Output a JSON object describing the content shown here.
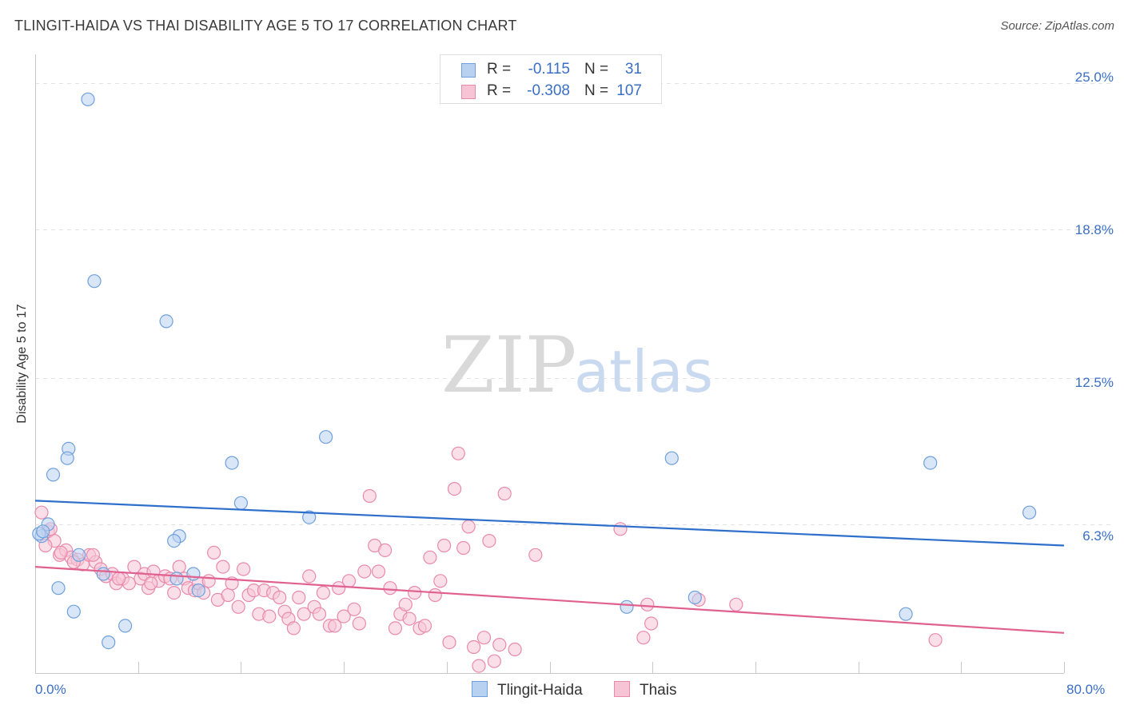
{
  "title": "TLINGIT-HAIDA VS THAI DISABILITY AGE 5 TO 17 CORRELATION CHART",
  "source": "Source: ZipAtlas.com",
  "watermark": {
    "zip": "ZIP",
    "atlas": "atlas"
  },
  "legend": {
    "r_label": "R =",
    "n_label": "N =",
    "rows": [
      {
        "r": "-0.115",
        "n": "31"
      },
      {
        "r": "-0.308",
        "n": "107"
      }
    ]
  },
  "chart_data": {
    "type": "scatter",
    "title": "TLINGIT-HAIDA VS THAI DISABILITY AGE 5 TO 17 CORRELATION CHART",
    "xlabel": "",
    "ylabel": "Disability Age 5 to 17",
    "xlim": [
      0,
      80
    ],
    "ylim": [
      0,
      25.8
    ],
    "x_tick_labels": [
      "0.0%",
      "80.0%"
    ],
    "y_ticks": [
      6.3,
      12.5,
      18.8,
      25.0
    ],
    "y_tick_labels": [
      "6.3%",
      "12.5%",
      "18.8%",
      "25.0%"
    ],
    "series": [
      {
        "name": "Tlingit-Haida",
        "color": "#6fa0dc",
        "fill": "#b9d1f0",
        "line_color": "#2f6fcc",
        "trend": [
          [
            0,
            7.3
          ],
          [
            80,
            5.4
          ]
        ],
        "points": [
          [
            0.5,
            5.8
          ],
          [
            1.0,
            6.3
          ],
          [
            4.1,
            24.3
          ],
          [
            4.6,
            16.6
          ],
          [
            10.2,
            14.9
          ],
          [
            2.6,
            9.5
          ],
          [
            2.5,
            9.1
          ],
          [
            1.4,
            8.4
          ],
          [
            22.6,
            10.0
          ],
          [
            15.3,
            8.9
          ],
          [
            16.0,
            7.2
          ],
          [
            21.3,
            6.6
          ],
          [
            11.2,
            5.8
          ],
          [
            10.8,
            5.6
          ],
          [
            3.4,
            5.0
          ],
          [
            5.3,
            4.2
          ],
          [
            12.3,
            4.2
          ],
          [
            1.8,
            3.6
          ],
          [
            11.0,
            4.0
          ],
          [
            12.7,
            3.5
          ],
          [
            3.0,
            2.6
          ],
          [
            7.0,
            2.0
          ],
          [
            5.7,
            1.3
          ],
          [
            49.5,
            9.1
          ],
          [
            69.6,
            8.9
          ],
          [
            77.3,
            6.8
          ],
          [
            46.0,
            2.8
          ],
          [
            51.3,
            3.2
          ],
          [
            67.7,
            2.5
          ],
          [
            0.3,
            5.9
          ],
          [
            0.6,
            6.0
          ]
        ]
      },
      {
        "name": "Thais",
        "color": "#e88aab",
        "fill": "#f7c4d5",
        "line_color": "#e0608e",
        "trend": [
          [
            0,
            4.5
          ],
          [
            80,
            1.7
          ]
        ],
        "points": [
          [
            0.5,
            6.8
          ],
          [
            1.0,
            6.0
          ],
          [
            1.5,
            5.6
          ],
          [
            1.9,
            5.0
          ],
          [
            2.4,
            5.2
          ],
          [
            2.8,
            4.9
          ],
          [
            3.3,
            4.8
          ],
          [
            3.7,
            4.6
          ],
          [
            4.2,
            5.0
          ],
          [
            4.7,
            4.7
          ],
          [
            5.1,
            4.4
          ],
          [
            5.5,
            4.1
          ],
          [
            6.0,
            4.2
          ],
          [
            6.3,
            3.8
          ],
          [
            6.8,
            4.0
          ],
          [
            7.3,
            3.8
          ],
          [
            7.7,
            4.5
          ],
          [
            8.2,
            4.0
          ],
          [
            8.5,
            4.2
          ],
          [
            8.8,
            3.6
          ],
          [
            9.2,
            4.3
          ],
          [
            9.6,
            3.9
          ],
          [
            10.1,
            4.1
          ],
          [
            10.5,
            4.0
          ],
          [
            10.8,
            3.4
          ],
          [
            11.2,
            4.5
          ],
          [
            11.6,
            4.0
          ],
          [
            11.9,
            3.6
          ],
          [
            12.4,
            3.5
          ],
          [
            12.7,
            3.8
          ],
          [
            13.1,
            3.4
          ],
          [
            13.5,
            3.9
          ],
          [
            13.9,
            5.1
          ],
          [
            14.2,
            3.1
          ],
          [
            14.6,
            4.5
          ],
          [
            15.0,
            3.3
          ],
          [
            15.3,
            3.8
          ],
          [
            15.8,
            2.8
          ],
          [
            16.2,
            4.4
          ],
          [
            16.6,
            3.3
          ],
          [
            17.0,
            3.5
          ],
          [
            17.4,
            2.5
          ],
          [
            17.8,
            3.5
          ],
          [
            18.2,
            2.4
          ],
          [
            18.5,
            3.4
          ],
          [
            19.0,
            3.2
          ],
          [
            19.4,
            2.6
          ],
          [
            19.7,
            2.3
          ],
          [
            20.1,
            1.9
          ],
          [
            20.5,
            3.2
          ],
          [
            20.9,
            2.5
          ],
          [
            21.3,
            4.1
          ],
          [
            21.7,
            2.8
          ],
          [
            22.1,
            2.5
          ],
          [
            22.4,
            3.4
          ],
          [
            22.9,
            2.0
          ],
          [
            23.3,
            2.0
          ],
          [
            23.6,
            3.6
          ],
          [
            24.0,
            2.4
          ],
          [
            24.4,
            3.9
          ],
          [
            24.8,
            2.7
          ],
          [
            25.2,
            2.1
          ],
          [
            25.6,
            4.3
          ],
          [
            26.0,
            7.5
          ],
          [
            26.4,
            5.4
          ],
          [
            26.7,
            4.3
          ],
          [
            27.2,
            5.2
          ],
          [
            27.6,
            3.6
          ],
          [
            28.0,
            1.9
          ],
          [
            28.4,
            2.5
          ],
          [
            28.8,
            2.9
          ],
          [
            29.1,
            2.3
          ],
          [
            29.5,
            3.4
          ],
          [
            29.9,
            1.9
          ],
          [
            30.3,
            2.0
          ],
          [
            30.7,
            4.9
          ],
          [
            31.1,
            3.3
          ],
          [
            31.5,
            3.9
          ],
          [
            31.8,
            5.4
          ],
          [
            32.2,
            1.3
          ],
          [
            32.6,
            7.8
          ],
          [
            32.9,
            9.3
          ],
          [
            33.3,
            5.3
          ],
          [
            33.7,
            6.2
          ],
          [
            34.1,
            1.1
          ],
          [
            34.5,
            0.3
          ],
          [
            34.9,
            1.5
          ],
          [
            35.3,
            5.6
          ],
          [
            35.7,
            0.5
          ],
          [
            36.1,
            1.2
          ],
          [
            36.5,
            7.6
          ],
          [
            37.3,
            1.0
          ],
          [
            38.9,
            5.0
          ],
          [
            45.5,
            6.1
          ],
          [
            47.6,
            2.9
          ],
          [
            47.9,
            2.1
          ],
          [
            47.3,
            1.5
          ],
          [
            51.6,
            3.1
          ],
          [
            54.5,
            2.9
          ],
          [
            70.0,
            1.4
          ],
          [
            0.8,
            5.4
          ],
          [
            1.2,
            6.1
          ],
          [
            2.0,
            5.1
          ],
          [
            3.0,
            4.7
          ],
          [
            4.5,
            5.0
          ],
          [
            6.5,
            4.0
          ],
          [
            9.0,
            3.8
          ]
        ]
      }
    ],
    "legend_position": "bottom"
  },
  "colors": {
    "tick_text": "#3a6fc4",
    "grid": "#e2e2e2",
    "axis": "#c8c8c8"
  }
}
